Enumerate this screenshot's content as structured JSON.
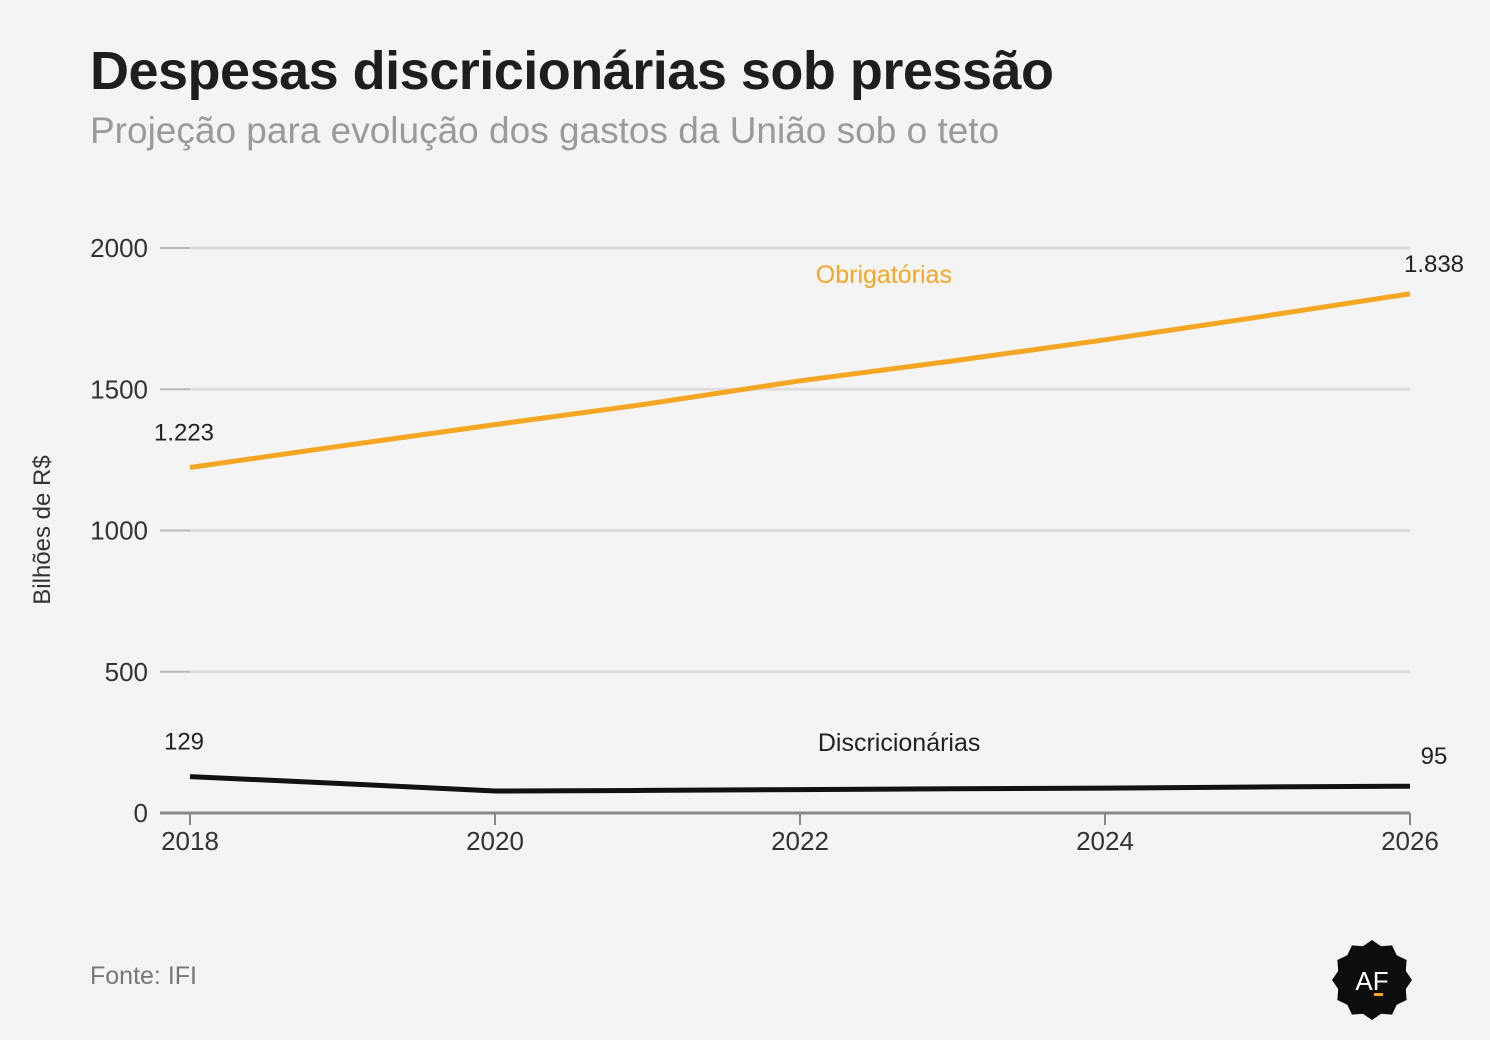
{
  "title": "Despesas discricionárias sob pressão",
  "subtitle": "Projeção para evolução dos gastos da União sob o teto",
  "source": "Fonte: IFI",
  "logo_text": "AF",
  "colors": {
    "obrigatorias": "#f5a623",
    "discricionarias": "#111111",
    "grid": "#dddddd",
    "axis": "#888888",
    "text": "#333333"
  },
  "chart_data": {
    "type": "line",
    "ylabel": "Bilhões de R$",
    "xlabel": "",
    "ylim": [
      0,
      2000
    ],
    "xlim": [
      2018,
      2026
    ],
    "yticks": [
      0,
      500,
      1000,
      1500,
      2000
    ],
    "xticks": [
      2018,
      2020,
      2022,
      2024,
      2026
    ],
    "grid": true,
    "series": [
      {
        "name": "Obrigatórias",
        "color": "#f5a623",
        "x": [
          2018,
          2019,
          2020,
          2021,
          2022,
          2023,
          2024,
          2025,
          2026
        ],
        "values": [
          1223,
          1300,
          1375,
          1448,
          1530,
          1600,
          1675,
          1755,
          1838
        ],
        "start_label": "1.223",
        "end_label": "1.838"
      },
      {
        "name": "Discricionárias",
        "color": "#111111",
        "x": [
          2018,
          2019,
          2020,
          2021,
          2022,
          2023,
          2024,
          2025,
          2026
        ],
        "values": [
          129,
          104,
          78,
          80,
          83,
          86,
          88,
          92,
          95
        ],
        "start_label": "129",
        "end_label": "95"
      }
    ]
  }
}
